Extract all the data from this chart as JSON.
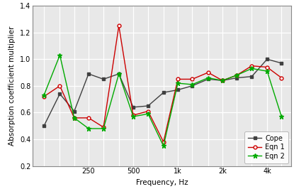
{
  "frequencies": [
    125,
    160,
    200,
    250,
    315,
    400,
    500,
    630,
    800,
    1000,
    1250,
    1600,
    2000,
    2500,
    3150,
    4000,
    5000
  ],
  "cope": [
    0.5,
    0.74,
    0.61,
    0.89,
    0.85,
    0.89,
    0.64,
    0.65,
    0.75,
    0.77,
    0.8,
    0.85,
    0.84,
    0.86,
    0.87,
    1.0,
    0.97
  ],
  "eqn1": [
    0.72,
    0.8,
    0.56,
    0.56,
    0.49,
    1.25,
    0.58,
    0.61,
    0.38,
    0.85,
    0.85,
    0.9,
    0.84,
    0.88,
    0.95,
    0.94,
    0.86
  ],
  "eqn2": [
    0.73,
    1.03,
    0.56,
    0.48,
    0.48,
    0.89,
    0.57,
    0.59,
    0.35,
    0.82,
    0.81,
    0.86,
    0.84,
    0.88,
    0.93,
    0.91,
    0.57
  ],
  "cope_color": "#404040",
  "eqn1_color": "#cc0000",
  "eqn2_color": "#00aa00",
  "xlabel": "Frequency, Hz",
  "ylabel": "Absorption coefficient multiplier",
  "ylim": [
    0.2,
    1.4
  ],
  "yticks": [
    0.2,
    0.4,
    0.6,
    0.8,
    1.0,
    1.2,
    1.4
  ],
  "labeled_xticks": [
    250,
    500,
    1000,
    2000,
    4000
  ],
  "xtick_labels_map": {
    "250": "250",
    "500": "500",
    "1000": "1k",
    "2000": "2k",
    "4000": "4k"
  },
  "bg_color": "#e8e8e8",
  "grid_color": "#ffffff",
  "legend_labels": [
    "Cope",
    "Eqn 1",
    "Eqn 2"
  ],
  "fontsize_ticks": 7,
  "fontsize_labels": 7.5,
  "fontsize_legend": 7
}
